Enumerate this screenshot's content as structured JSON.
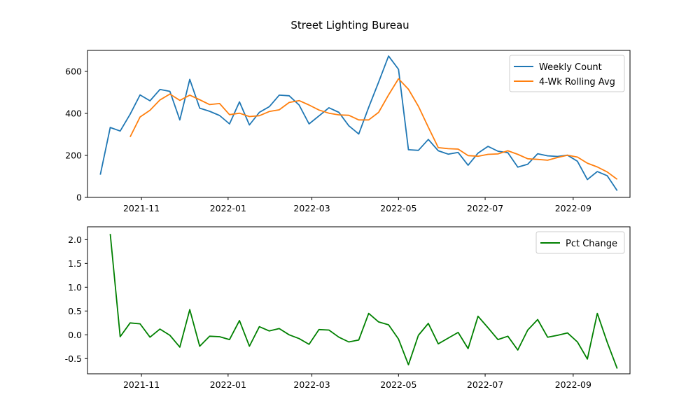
{
  "figure": {
    "title": "Street Lighting Bureau"
  },
  "colors": {
    "weekly": "#1f77b4",
    "rolling": "#ff7f0e",
    "pct": "#008000"
  },
  "chart_data": [
    {
      "type": "line",
      "x_type": "date",
      "x": [
        "2021-10-03",
        "2021-10-10",
        "2021-10-17",
        "2021-10-24",
        "2021-10-31",
        "2021-11-07",
        "2021-11-14",
        "2021-11-21",
        "2021-11-28",
        "2021-12-05",
        "2021-12-12",
        "2021-12-19",
        "2021-12-26",
        "2022-01-02",
        "2022-01-09",
        "2022-01-16",
        "2022-01-23",
        "2022-01-30",
        "2022-02-06",
        "2022-02-13",
        "2022-02-20",
        "2022-02-27",
        "2022-03-06",
        "2022-03-13",
        "2022-03-20",
        "2022-03-27",
        "2022-04-03",
        "2022-04-10",
        "2022-04-17",
        "2022-04-24",
        "2022-05-01",
        "2022-05-08",
        "2022-05-15",
        "2022-05-22",
        "2022-05-29",
        "2022-06-05",
        "2022-06-12",
        "2022-06-19",
        "2022-06-26",
        "2022-07-03",
        "2022-07-10",
        "2022-07-17",
        "2022-07-24",
        "2022-07-31",
        "2022-08-07",
        "2022-08-14",
        "2022-08-21",
        "2022-08-28",
        "2022-09-04",
        "2022-09-11",
        "2022-09-18",
        "2022-09-25",
        "2022-10-02"
      ],
      "series": [
        {
          "name": "Weekly Count",
          "color_key": "weekly",
          "values": [
            108,
            333,
            316,
            396,
            488,
            460,
            514,
            505,
            369,
            562,
            425,
            410,
            390,
            350,
            455,
            345,
            405,
            432,
            487,
            484,
            440,
            350,
            388,
            427,
            405,
            341,
            302,
            429,
            549,
            673,
            610,
            227,
            224,
            276,
            222,
            206,
            214,
            153,
            211,
            243,
            220,
            213,
            144,
            158,
            208,
            198,
            195,
            201,
            172,
            85,
            123,
            103,
            32
          ]
        },
        {
          "name": "4-Wk Rolling Avg",
          "color_key": "rolling",
          "values": [
            null,
            null,
            null,
            288,
            383,
            415,
            464,
            492,
            462,
            487,
            465,
            442,
            447,
            394,
            401,
            385,
            389,
            409,
            417,
            452,
            461,
            440,
            416,
            401,
            393,
            391,
            369,
            369,
            405,
            488,
            565,
            515,
            434,
            334,
            237,
            232,
            230,
            199,
            196,
            205,
            207,
            222,
            205,
            184,
            181,
            177,
            190,
            201,
            192,
            163,
            145,
            121,
            86
          ]
        }
      ],
      "ylim": [
        0,
        700
      ],
      "yticks": [
        0,
        200,
        400,
        600
      ],
      "xticks": [
        "2021-11",
        "2022-01",
        "2022-03",
        "2022-05",
        "2022-07",
        "2022-09"
      ],
      "legend": "top-right",
      "grid": false
    },
    {
      "type": "line",
      "x_type": "date",
      "x": [
        "2021-10-10",
        "2021-10-17",
        "2021-10-24",
        "2021-10-31",
        "2021-11-07",
        "2021-11-14",
        "2021-11-21",
        "2021-11-28",
        "2021-12-05",
        "2021-12-12",
        "2021-12-19",
        "2021-12-26",
        "2022-01-02",
        "2022-01-09",
        "2022-01-16",
        "2022-01-23",
        "2022-01-30",
        "2022-02-06",
        "2022-02-13",
        "2022-02-20",
        "2022-02-27",
        "2022-03-06",
        "2022-03-13",
        "2022-03-20",
        "2022-03-27",
        "2022-04-03",
        "2022-04-10",
        "2022-04-17",
        "2022-04-24",
        "2022-05-01",
        "2022-05-08",
        "2022-05-15",
        "2022-05-22",
        "2022-05-29",
        "2022-06-05",
        "2022-06-12",
        "2022-06-19",
        "2022-06-26",
        "2022-07-03",
        "2022-07-10",
        "2022-07-17",
        "2022-07-24",
        "2022-07-31",
        "2022-08-07",
        "2022-08-14",
        "2022-08-21",
        "2022-08-28",
        "2022-09-04",
        "2022-09-11",
        "2022-09-18",
        "2022-09-25",
        "2022-10-02"
      ],
      "series": [
        {
          "name": "Pct Change",
          "color_key": "pct",
          "values": [
            2.12,
            -0.04,
            0.25,
            0.23,
            -0.05,
            0.12,
            -0.01,
            -0.26,
            0.53,
            -0.24,
            -0.03,
            -0.04,
            -0.1,
            0.3,
            -0.24,
            0.17,
            0.08,
            0.13,
            0.0,
            -0.08,
            -0.2,
            0.11,
            0.1,
            -0.05,
            -0.15,
            -0.11,
            0.45,
            0.27,
            0.21,
            -0.09,
            -0.63,
            -0.01,
            0.24,
            -0.19,
            -0.07,
            0.05,
            -0.29,
            0.39,
            0.15,
            -0.1,
            -0.03,
            -0.32,
            0.1,
            0.32,
            -0.05,
            -0.01,
            0.04,
            -0.15,
            -0.51,
            0.45,
            -0.16,
            -0.71
          ]
        }
      ],
      "ylim": [
        -0.82,
        2.27
      ],
      "yticks": [
        "-0.5",
        "0.0",
        "0.5",
        "1.0",
        "1.5",
        "2.0"
      ],
      "xticks": [
        "2021-11",
        "2022-01",
        "2022-03",
        "2022-05",
        "2022-07",
        "2022-09"
      ],
      "legend": "top-right",
      "grid": false
    }
  ]
}
